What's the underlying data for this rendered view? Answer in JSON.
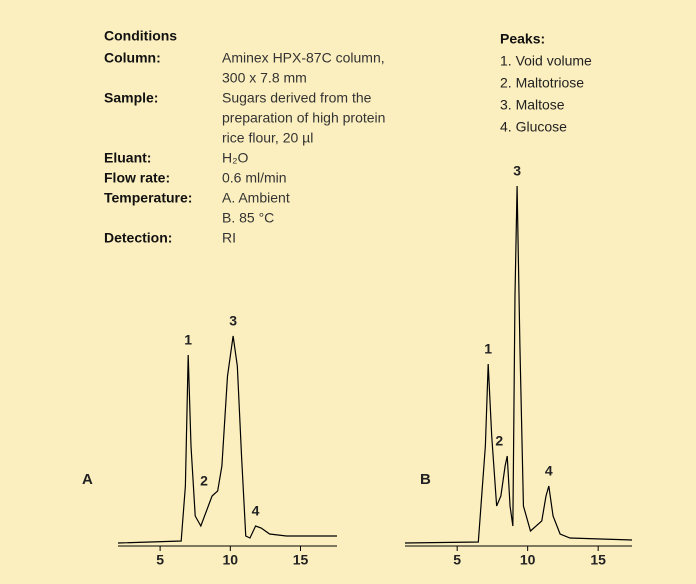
{
  "conditions": {
    "title": "Conditions",
    "rows": [
      {
        "key": "Column:",
        "lines": [
          "Aminex HPX-87C column,",
          "300 x 7.8 mm"
        ]
      },
      {
        "key": "Sample:",
        "lines": [
          "Sugars derived from the",
          "preparation of high protein",
          "rice flour, 20 µl"
        ]
      },
      {
        "key": "Eluant:",
        "lines": [
          "H₂O"
        ]
      },
      {
        "key": "Flow rate:",
        "lines": [
          "0.6 ml/min"
        ]
      },
      {
        "key": "Temperature:",
        "lines": [
          "A. Ambient",
          "B. 85 °C"
        ]
      },
      {
        "key": "Detection:",
        "lines": [
          "RI"
        ]
      }
    ]
  },
  "peaks": {
    "title": "Peaks:",
    "items": [
      "1. Void volume",
      "2. Maltotriose",
      "3. Maltose",
      "4. Glucose"
    ]
  },
  "chart_data": [
    {
      "type": "line",
      "label": "A",
      "x": [
        2,
        6.5,
        6.8,
        7.0,
        7.2,
        7.5,
        7.9,
        8.3,
        8.7,
        9.1,
        9.4,
        9.8,
        10.2,
        10.5,
        10.8,
        11.1,
        11.4,
        11.8,
        12.2,
        12.8,
        14,
        17.6
      ],
      "values": [
        3,
        5,
        60,
        191,
        100,
        30,
        20,
        35,
        50,
        55,
        80,
        170,
        210,
        180,
        90,
        10,
        8,
        20,
        18,
        12,
        10,
        10
      ],
      "color": "#000000",
      "xlim": [
        2,
        17.6
      ],
      "xticks": [
        5,
        10,
        15
      ],
      "ylim": [
        0,
        380
      ],
      "annotations": [
        {
          "text": "1",
          "x": 7.0
        },
        {
          "text": "2",
          "x": 8.7
        },
        {
          "text": "3",
          "x": 10.2
        },
        {
          "text": "4",
          "x": 11.8
        }
      ]
    },
    {
      "type": "line",
      "label": "B",
      "x": [
        1.3,
        6.5,
        7.0,
        7.2,
        7.45,
        7.8,
        8.1,
        8.4,
        8.55,
        8.75,
        8.95,
        9.1,
        9.25,
        9.45,
        9.7,
        10.2,
        11.0,
        11.3,
        11.5,
        11.8,
        12.3,
        13,
        17.4
      ],
      "values": [
        3,
        4,
        100,
        182,
        110,
        40,
        50,
        80,
        90,
        40,
        20,
        250,
        360,
        200,
        40,
        15,
        25,
        50,
        60,
        30,
        12,
        8,
        6
      ],
      "color": "#000000",
      "xlim": [
        1.3,
        17.4
      ],
      "xticks": [
        5,
        10,
        15
      ],
      "ylim": [
        0,
        380
      ],
      "annotations": [
        {
          "text": "1",
          "x": 7.2
        },
        {
          "text": "2",
          "x": 8.55
        },
        {
          "text": "3",
          "x": 9.25
        },
        {
          "text": "4",
          "x": 11.5
        }
      ]
    }
  ]
}
